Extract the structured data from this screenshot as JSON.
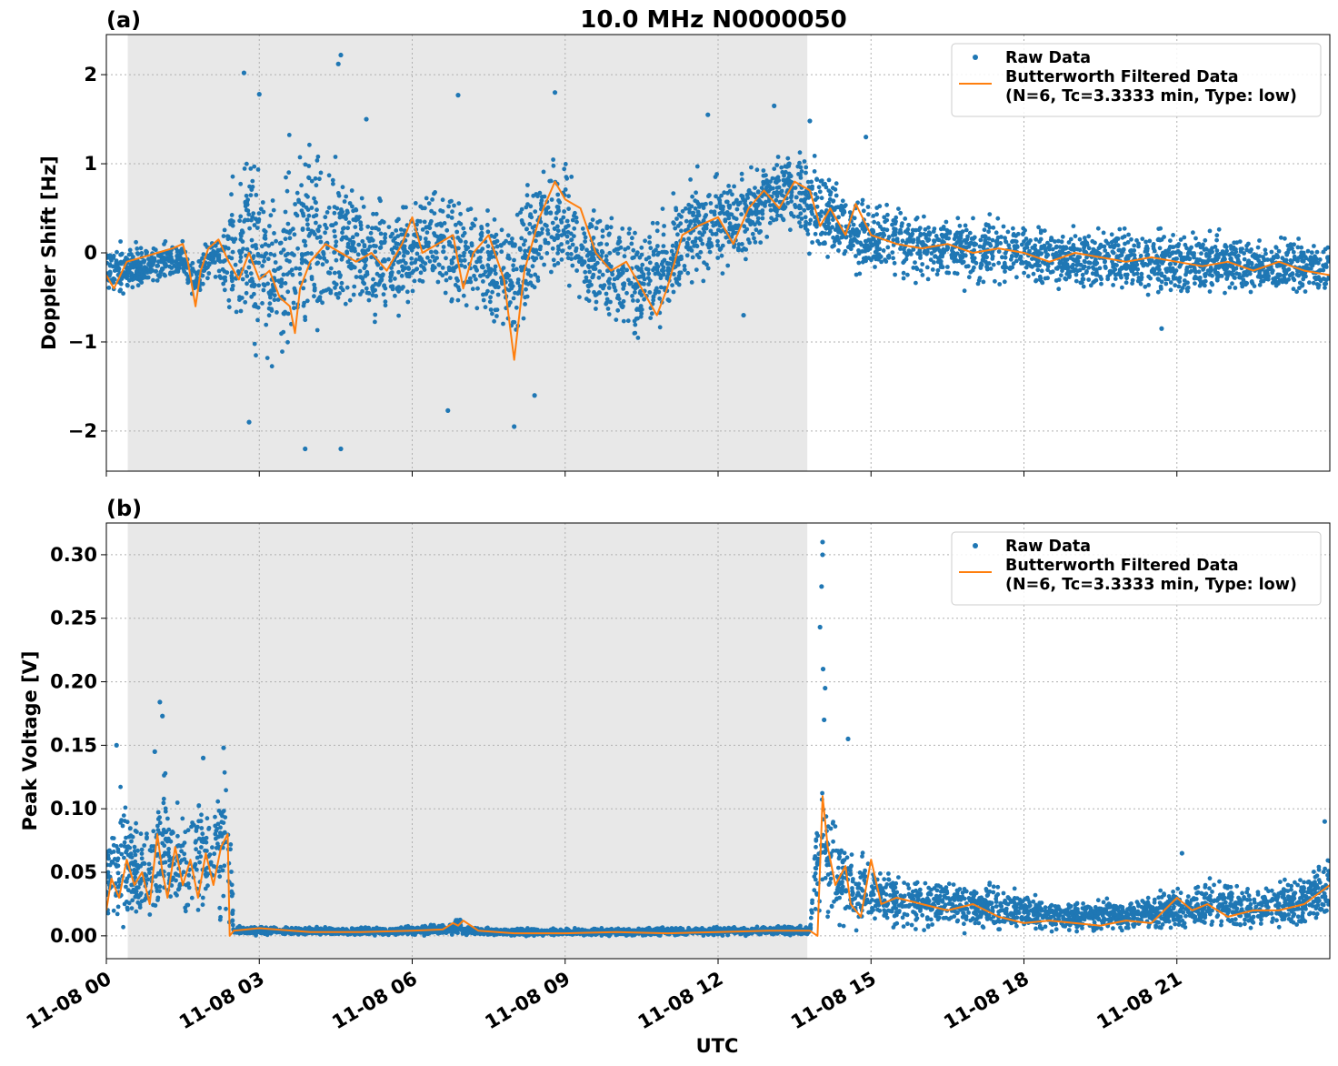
{
  "title": "10.0 MHz N0000050",
  "xlabel": "UTC",
  "x_tick_labels": [
    "11-08 00",
    "11-08 03",
    "11-08 06",
    "11-08 09",
    "11-08 12",
    "11-08 15",
    "11-08 18",
    "11-08 21"
  ],
  "colors": {
    "raw": "#1f77b4",
    "filtered": "#ff7f0e",
    "night_shade": "#e8e8e8",
    "grid": "#b0b0b0"
  },
  "chart_data": [
    {
      "type": "scatter",
      "panel_label": "(a)",
      "ylabel": "Doppler Shift [Hz]",
      "xlim_hours": [
        0,
        24
      ],
      "ylim": [
        -2.45,
        2.45
      ],
      "y_ticks": [
        -2,
        -1,
        0,
        1,
        2
      ],
      "y_tick_labels": [
        "−2",
        "−1",
        "0",
        "1",
        "2"
      ],
      "shaded_interval_hours": [
        0.42,
        13.75
      ],
      "grid": true,
      "legend": {
        "placement": "top-right",
        "entries": [
          "Raw Data",
          "Butterworth Filtered Data",
          "(N=6, Tc=3.3333 min, Type: low)"
        ]
      },
      "series": [
        {
          "name": "Raw Data",
          "kind": "scatter_band",
          "x_hours": [
            0,
            0.5,
            1.0,
            1.5,
            1.75,
            2.0,
            2.3,
            2.5,
            3.0,
            3.3,
            3.6,
            4.0,
            4.5,
            5.0,
            5.5,
            6.0,
            6.5,
            7.0,
            7.5,
            8.0,
            8.5,
            9.0,
            9.5,
            10.0,
            10.5,
            11.0,
            11.5,
            12.0,
            12.5,
            13.0,
            13.5,
            14.0,
            14.5,
            15.0,
            16.0,
            17.0,
            18.0,
            19.0,
            20.0,
            21.0,
            22.0,
            23.0,
            24.0
          ],
          "y_upper": [
            0.1,
            0.15,
            0.1,
            0.2,
            -0.1,
            0.2,
            0.2,
            1.2,
            1.3,
            0.8,
            1.2,
            1.4,
            1.3,
            0.8,
            0.7,
            0.6,
            0.8,
            0.7,
            0.6,
            0.5,
            1.0,
            1.2,
            0.6,
            0.5,
            0.4,
            0.6,
            0.9,
            0.9,
            0.9,
            1.1,
            1.2,
            1.1,
            0.7,
            0.6,
            0.55,
            0.45,
            0.4,
            0.35,
            0.3,
            0.3,
            0.25,
            0.2,
            0.15
          ],
          "y_lower": [
            -0.5,
            -0.45,
            -0.4,
            -0.3,
            -0.7,
            -0.3,
            -0.4,
            -1.0,
            -1.3,
            -1.5,
            -1.3,
            -1.1,
            -1.0,
            -0.8,
            -0.9,
            -0.6,
            -0.6,
            -0.7,
            -0.8,
            -1.3,
            -0.5,
            -0.4,
            -0.8,
            -0.9,
            -1.1,
            -0.8,
            -0.4,
            -0.3,
            -0.1,
            0.2,
            0.2,
            -0.1,
            -0.2,
            -0.3,
            -0.35,
            -0.4,
            -0.4,
            -0.45,
            -0.45,
            -0.5,
            -0.5,
            -0.5,
            -0.5
          ],
          "outliers": [
            [
              2.7,
              2.02
            ],
            [
              4.6,
              2.22
            ],
            [
              4.55,
              2.12
            ],
            [
              3.0,
              1.78
            ],
            [
              5.1,
              1.5
            ],
            [
              6.9,
              1.77
            ],
            [
              8.8,
              1.8
            ],
            [
              11.8,
              1.55
            ],
            [
              13.1,
              1.65
            ],
            [
              13.8,
              1.48
            ],
            [
              3.9,
              -2.2
            ],
            [
              4.6,
              -2.2
            ],
            [
              2.8,
              -1.9
            ],
            [
              6.7,
              -1.77
            ],
            [
              8.0,
              -1.95
            ],
            [
              8.4,
              -1.6
            ],
            [
              14.9,
              1.3
            ],
            [
              12.5,
              -0.7
            ],
            [
              20.7,
              -0.85
            ]
          ]
        },
        {
          "name": "Butterworth Filtered Data",
          "kind": "line",
          "x_hours": [
            0,
            0.15,
            0.4,
            0.7,
            1.0,
            1.3,
            1.5,
            1.6,
            1.75,
            1.85,
            2.0,
            2.2,
            2.4,
            2.6,
            2.8,
            3.0,
            3.2,
            3.4,
            3.6,
            3.7,
            3.8,
            4.0,
            4.3,
            4.6,
            4.9,
            5.2,
            5.5,
            5.8,
            6.0,
            6.2,
            6.5,
            6.8,
            7.0,
            7.2,
            7.5,
            7.8,
            8.0,
            8.2,
            8.5,
            8.8,
            9.0,
            9.3,
            9.6,
            9.9,
            10.2,
            10.5,
            10.8,
            11.0,
            11.3,
            11.6,
            12.0,
            12.3,
            12.6,
            12.9,
            13.2,
            13.5,
            13.8,
            14.0,
            14.2,
            14.5,
            14.7,
            15.0,
            15.5,
            16.0,
            16.5,
            17.0,
            17.5,
            18.0,
            18.5,
            19.0,
            19.5,
            20.0,
            20.5,
            21.0,
            21.5,
            22.0,
            22.5,
            23.0,
            23.5,
            24.0
          ],
          "y": [
            -0.25,
            -0.4,
            -0.1,
            -0.05,
            0.0,
            0.05,
            0.1,
            -0.1,
            -0.6,
            -0.2,
            0.05,
            0.15,
            -0.1,
            -0.3,
            0.0,
            -0.3,
            -0.2,
            -0.5,
            -0.6,
            -0.9,
            -0.4,
            -0.1,
            0.1,
            0.0,
            -0.1,
            0.0,
            -0.2,
            0.1,
            0.4,
            0.0,
            0.1,
            0.2,
            -0.4,
            0.0,
            0.2,
            -0.3,
            -1.2,
            -0.2,
            0.4,
            0.8,
            0.6,
            0.5,
            0.0,
            -0.2,
            -0.1,
            -0.4,
            -0.7,
            -0.4,
            0.2,
            0.3,
            0.4,
            0.1,
            0.5,
            0.7,
            0.5,
            0.8,
            0.7,
            0.3,
            0.5,
            0.2,
            0.55,
            0.2,
            0.1,
            0.05,
            0.1,
            0.0,
            0.05,
            0.0,
            -0.1,
            0.0,
            -0.05,
            -0.1,
            -0.05,
            -0.1,
            -0.15,
            -0.1,
            -0.2,
            -0.1,
            -0.2,
            -0.25
          ]
        }
      ]
    },
    {
      "type": "scatter",
      "panel_label": "(b)",
      "ylabel": "Peak Voltage [V]",
      "xlim_hours": [
        0,
        24
      ],
      "ylim": [
        -0.018,
        0.325
      ],
      "y_ticks": [
        0.0,
        0.05,
        0.1,
        0.15,
        0.2,
        0.25,
        0.3
      ],
      "y_tick_labels": [
        "0.00",
        "0.05",
        "0.10",
        "0.15",
        "0.20",
        "0.25",
        "0.30"
      ],
      "shaded_interval_hours": [
        0.42,
        13.75
      ],
      "grid": true,
      "legend": {
        "placement": "top-right",
        "entries": [
          "Raw Data",
          "Butterworth Filtered Data",
          "(N=6, Tc=3.3333 min, Type: low)"
        ]
      },
      "series": [
        {
          "name": "Raw Data",
          "kind": "scatter_band",
          "x_hours": [
            0,
            0.3,
            0.6,
            0.9,
            1.1,
            1.3,
            1.6,
            1.9,
            2.1,
            2.3,
            2.42,
            2.5,
            3.0,
            4.0,
            5.0,
            6.0,
            6.8,
            6.9,
            7.0,
            7.5,
            8.0,
            9.0,
            10.0,
            11.0,
            12.0,
            13.0,
            13.8,
            14.0,
            14.05,
            14.2,
            14.5,
            14.8,
            15.0,
            15.5,
            16.0,
            16.5,
            17.0,
            17.5,
            18.0,
            19.0,
            20.0,
            21.0,
            22.0,
            22.5,
            23.0,
            23.5,
            24.0
          ],
          "y_upper": [
            0.08,
            0.12,
            0.09,
            0.1,
            0.14,
            0.1,
            0.11,
            0.12,
            0.11,
            0.14,
            0.12,
            0.008,
            0.008,
            0.007,
            0.007,
            0.008,
            0.01,
            0.018,
            0.008,
            0.007,
            0.006,
            0.006,
            0.006,
            0.007,
            0.007,
            0.008,
            0.008,
            0.15,
            0.13,
            0.11,
            0.08,
            0.07,
            0.06,
            0.05,
            0.05,
            0.045,
            0.045,
            0.04,
            0.035,
            0.03,
            0.03,
            0.04,
            0.05,
            0.04,
            0.045,
            0.05,
            0.07
          ],
          "y_lower": [
            0.01,
            0.005,
            0.005,
            0.005,
            0.005,
            0.005,
            0.005,
            0.005,
            0.005,
            0.005,
            0.0,
            0.0,
            0.0,
            0.0,
            0.0,
            0.0,
            0.0,
            0.0,
            0.0,
            0.0,
            0.0,
            0.0,
            0.0,
            0.0,
            0.0,
            0.0,
            0.0,
            0.005,
            0.01,
            0.005,
            0.003,
            0.005,
            0.005,
            0.005,
            0.005,
            0.005,
            0.003,
            0.003,
            0.002,
            0.002,
            0.002,
            0.003,
            0.003,
            0.003,
            0.004,
            0.005,
            0.005
          ],
          "outliers": [
            [
              0.2,
              0.15
            ],
            [
              1.05,
              0.184
            ],
            [
              1.1,
              0.173
            ],
            [
              0.95,
              0.145
            ],
            [
              1.9,
              0.14
            ],
            [
              2.3,
              0.148
            ],
            [
              14.05,
              0.31
            ],
            [
              14.05,
              0.3
            ],
            [
              14.03,
              0.275
            ],
            [
              14.0,
              0.243
            ],
            [
              14.06,
              0.21
            ],
            [
              14.1,
              0.195
            ],
            [
              14.08,
              0.17
            ],
            [
              14.55,
              0.155
            ],
            [
              21.1,
              0.065
            ],
            [
              23.9,
              0.09
            ]
          ]
        },
        {
          "name": "Butterworth Filtered Data",
          "kind": "line",
          "x_hours": [
            0,
            0.1,
            0.25,
            0.4,
            0.55,
            0.7,
            0.85,
            1.0,
            1.1,
            1.2,
            1.35,
            1.5,
            1.65,
            1.8,
            1.95,
            2.1,
            2.25,
            2.38,
            2.42,
            2.5,
            3.0,
            4.0,
            5.0,
            6.0,
            6.6,
            6.8,
            6.9,
            7.0,
            7.3,
            8.0,
            9.0,
            10.0,
            11.0,
            12.0,
            13.0,
            13.8,
            13.95,
            14.05,
            14.15,
            14.3,
            14.5,
            14.6,
            14.8,
            15.0,
            15.2,
            15.5,
            16.0,
            16.5,
            17.0,
            17.5,
            18.0,
            18.5,
            19.0,
            19.5,
            20.0,
            20.5,
            21.0,
            21.3,
            21.6,
            22.0,
            22.5,
            23.0,
            23.5,
            24.0
          ],
          "y": [
            0.02,
            0.045,
            0.03,
            0.06,
            0.04,
            0.05,
            0.025,
            0.08,
            0.05,
            0.03,
            0.07,
            0.04,
            0.06,
            0.03,
            0.065,
            0.04,
            0.07,
            0.08,
            0.0,
            0.004,
            0.006,
            0.003,
            0.003,
            0.004,
            0.005,
            0.01,
            0.008,
            0.012,
            0.004,
            0.002,
            0.002,
            0.003,
            0.002,
            0.003,
            0.004,
            0.004,
            0.0,
            0.11,
            0.07,
            0.04,
            0.055,
            0.025,
            0.015,
            0.06,
            0.025,
            0.03,
            0.025,
            0.02,
            0.025,
            0.015,
            0.01,
            0.012,
            0.01,
            0.008,
            0.012,
            0.01,
            0.03,
            0.02,
            0.025,
            0.015,
            0.02,
            0.02,
            0.025,
            0.04
          ]
        }
      ]
    }
  ]
}
